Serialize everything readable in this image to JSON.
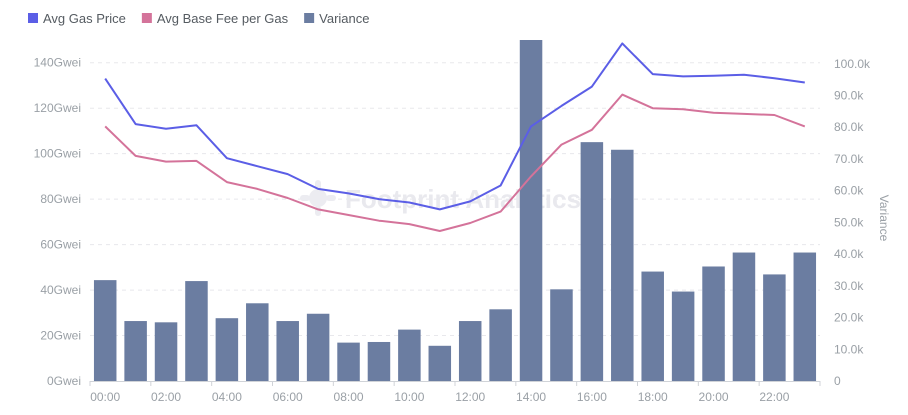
{
  "chart_data": {
    "type": "bar",
    "categories": [
      "00:00",
      "01:00",
      "02:00",
      "03:00",
      "04:00",
      "05:00",
      "06:00",
      "07:00",
      "08:00",
      "09:00",
      "10:00",
      "11:00",
      "12:00",
      "13:00",
      "14:00",
      "15:00",
      "16:00",
      "17:00",
      "18:00",
      "19:00",
      "20:00",
      "21:00",
      "22:00",
      "23:00"
    ],
    "x_tick_labels": [
      "00:00",
      "02:00",
      "04:00",
      "06:00",
      "08:00",
      "10:00",
      "12:00",
      "14:00",
      "16:00",
      "18:00",
      "20:00",
      "22:00"
    ],
    "series": [
      {
        "name": "Avg Gas Price",
        "type": "line",
        "axis": "left",
        "color": "#5b5ee6",
        "values": [
          133,
          113,
          111,
          112.5,
          98,
          94.5,
          91,
          84.5,
          82.5,
          80,
          78.5,
          75.5,
          79,
          86,
          112,
          121,
          129.5,
          148.5,
          135,
          134,
          134.3,
          134.7,
          133.2,
          131.3
        ]
      },
      {
        "name": "Avg Base Fee per Gas",
        "type": "line",
        "axis": "left",
        "color": "#d4739a",
        "values": [
          112,
          99,
          96.5,
          96.8,
          87.5,
          84.5,
          80.5,
          75.5,
          73,
          70.5,
          69,
          66,
          69.5,
          74.5,
          90,
          104,
          110.5,
          126,
          120,
          119.5,
          118,
          117.5,
          117,
          112
        ]
      },
      {
        "name": "Variance",
        "type": "bar",
        "axis": "right",
        "color": "#6b7da1",
        "values": [
          31800,
          18900,
          18500,
          31500,
          19800,
          24500,
          18900,
          21200,
          12100,
          12300,
          16200,
          11100,
          18900,
          22600,
          107500,
          28900,
          75300,
          72900,
          34500,
          28200,
          36100,
          40500,
          33600,
          40500
        ]
      }
    ],
    "y_left": {
      "ticks": [
        "0Gwei",
        "20Gwei",
        "40Gwei",
        "60Gwei",
        "80Gwei",
        "100Gwei",
        "120Gwei",
        "140Gwei"
      ],
      "range": [
        0,
        150
      ]
    },
    "y_right": {
      "ticks": [
        "0",
        "10.0k",
        "20.0k",
        "30.0k",
        "40.0k",
        "50.0k",
        "60.0k",
        "70.0k",
        "80.0k",
        "90.0k",
        "100.0k"
      ],
      "range": [
        0,
        107500
      ],
      "label": "Variance"
    },
    "legend_position": "top-left",
    "grid": "horizontal-dashed"
  },
  "watermark": {
    "text": "Footprint Analytics"
  }
}
